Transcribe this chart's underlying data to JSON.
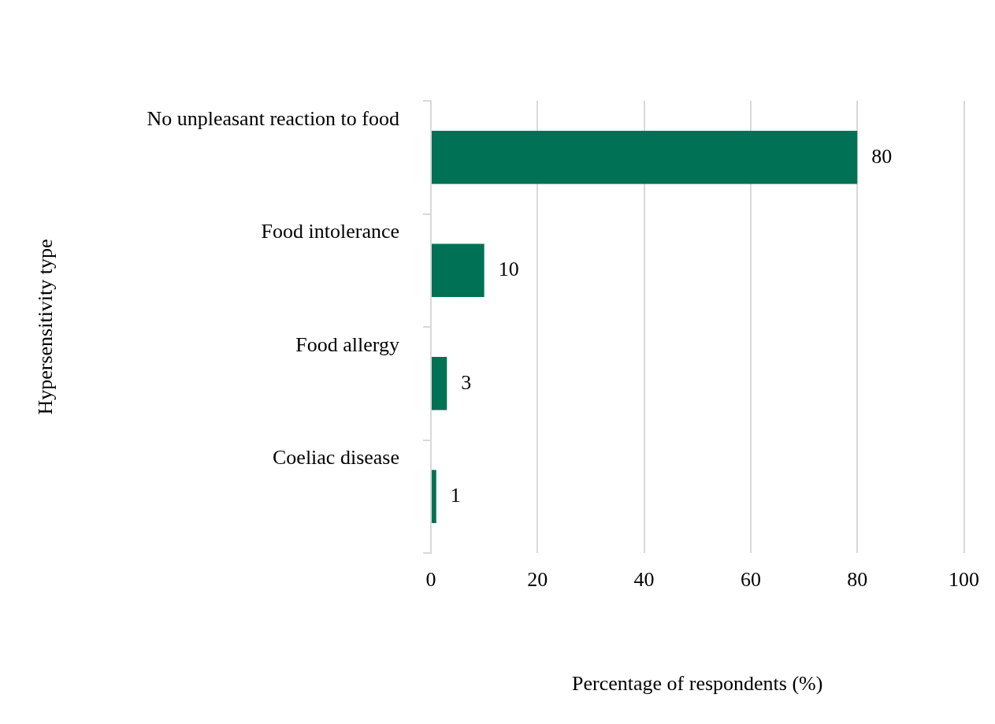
{
  "chart_data": {
    "type": "bar",
    "orientation": "horizontal",
    "xlabel": "Percentage of respondents (%)",
    "ylabel": "Hypersensitivity type",
    "categories": [
      "No unpleasant reaction to food",
      "Food intolerance",
      "Food allergy",
      "Coeliac disease"
    ],
    "values": [
      80,
      10,
      3,
      1
    ],
    "color": "#007155",
    "xlim": [
      0,
      100
    ],
    "xticks": [
      0,
      20,
      40,
      60,
      80,
      100
    ],
    "grid": "x",
    "data_labels": true
  }
}
